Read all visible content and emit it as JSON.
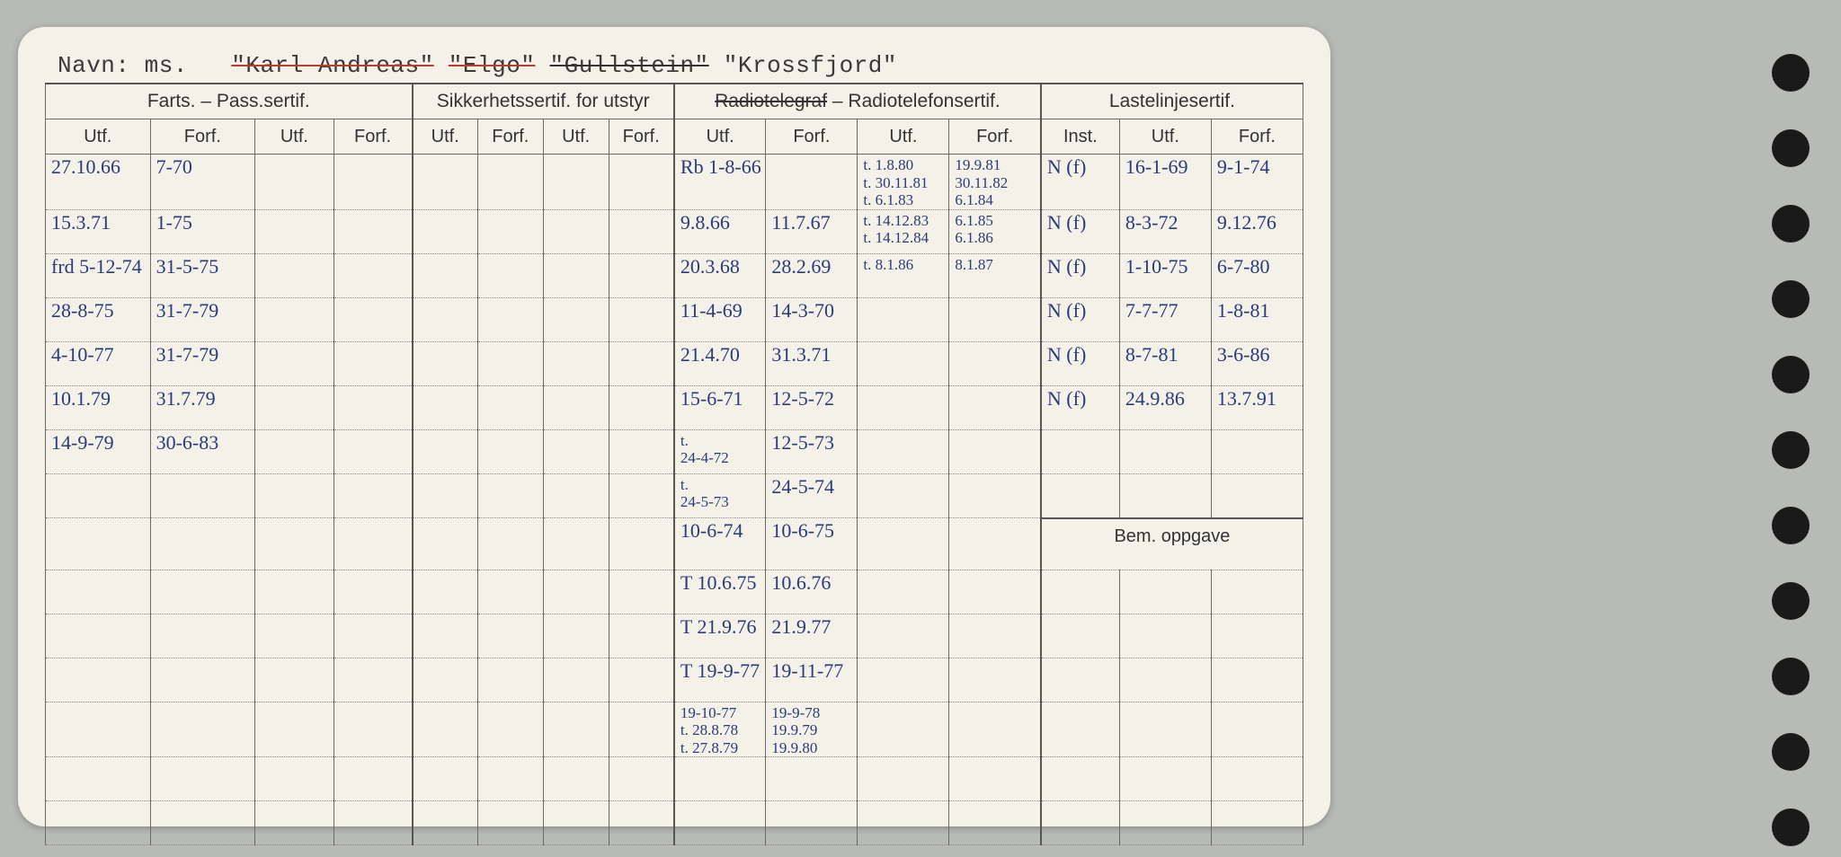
{
  "navn": {
    "label": "Navn:",
    "prefix": "ms.",
    "name1": "\"Karl Andreas\"",
    "name2": "\"Elgo\"",
    "name3": "\"Gullstein\"",
    "name4": "\"Krossfjord\""
  },
  "headers": {
    "g1": "Farts. – Pass.sertif.",
    "g2": "Sikkerhetssertif. for utstyr",
    "g3a": "Radiotelegraf",
    "g3b": " – Radiotelefonsertif.",
    "g4": "Lastelinjesertif.",
    "utf": "Utf.",
    "forf": "Forf.",
    "inst": "Inst.",
    "bem": "Bem. oppgave"
  },
  "rows": [
    {
      "a1": "27.10.66",
      "a2": "7-70",
      "r1": "Rb 1-8-66",
      "r2": "",
      "r3a": "t. 1.8.80",
      "r3b": "t. 30.11.81",
      "r3c": "t. 6.1.83",
      "r4a": "19.9.81",
      "r4b": "30.11.82",
      "r4c": "6.1.84",
      "l1": "N (f)",
      "l2": "16-1-69",
      "l3": "9-1-74"
    },
    {
      "a1": "15.3.71",
      "a2": "1-75",
      "r1": "9.8.66",
      "r2": "11.7.67",
      "r3a": "t. 14.12.83",
      "r3b": "t. 14.12.84",
      "r4a": "6.1.85",
      "r4b": "6.1.86",
      "l1": "N (f)",
      "l2": "8-3-72",
      "l3": "9.12.76"
    },
    {
      "a1": "frd 5-12-74",
      "a2": "31-5-75",
      "r1": "20.3.68",
      "r2": "28.2.69",
      "r3a": "t. 8.1.86",
      "r4a": "8.1.87",
      "l1": "N (f)",
      "l2": "1-10-75",
      "l3": "6-7-80"
    },
    {
      "a1": "28-8-75",
      "a2": "31-7-79",
      "r1": "11-4-69",
      "r2": "14-3-70",
      "l1": "N (f)",
      "l2": "7-7-77",
      "l3": "1-8-81"
    },
    {
      "a1": "4-10-77",
      "a2": "31-7-79",
      "r1": "21.4.70",
      "r2": "31.3.71",
      "l1": "N (f)",
      "l2": "8-7-81",
      "l3": "3-6-86"
    },
    {
      "a1": "10.1.79",
      "a2": "31.7.79",
      "r1": "15-6-71",
      "r2": "12-5-72",
      "l1": "N (f)",
      "l2": "24.9.86",
      "l3": "13.7.91"
    },
    {
      "a1": "14-9-79",
      "a2": "30-6-83",
      "r1a": "t.",
      "r1": "24-4-72",
      "r2": "12-5-73"
    },
    {
      "r1a": "t.",
      "r1": "24-5-73",
      "r2": "24-5-74"
    },
    {
      "r1": "10-6-74",
      "r2": "10-6-75",
      "bem": true
    },
    {
      "r1": "T 10.6.75",
      "r2": "10.6.76"
    },
    {
      "r1": "T 21.9.76",
      "r2": "21.9.77"
    },
    {
      "r1": "T 19-9-77",
      "r2": "19-11-77"
    },
    {
      "r1a": "19-10-77",
      "r1b": "t. 28.8.78",
      "r1c": "t. 27.8.79",
      "r2a": "19-9-78",
      "r2b": "19.9.79",
      "r2c": "19.9.80"
    }
  ],
  "colwidths": {
    "a": [
      "92",
      "92",
      "70",
      "70"
    ],
    "b": [
      "56",
      "56",
      "56",
      "56"
    ],
    "c": [
      "80",
      "80",
      "80",
      "80"
    ],
    "d": [
      "64",
      "80",
      "80"
    ]
  },
  "colors": {
    "card": "#f4f1e8",
    "ink": "#2b3a7a",
    "border": "#6a6a64",
    "bg": "#b8bab5"
  }
}
